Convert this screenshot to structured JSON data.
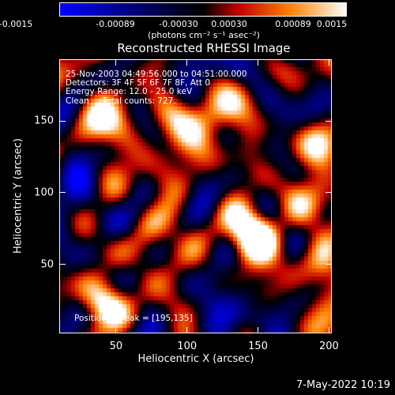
{
  "colorbar": {
    "tick_labels": [
      "-0.0015",
      "-0.00089",
      "-0.00030",
      "0.00030",
      "0.00089",
      "0.0015"
    ],
    "unit": "(photons cm⁻² s⁻¹ asec⁻²)",
    "colors": [
      "#0000ff",
      "#000000",
      "#c00000",
      "#ff8000",
      "#ffffff"
    ]
  },
  "chart_data": {
    "type": "heatmap",
    "title": "Reconstructed RHESSI Image",
    "xlabel": "Heliocentric X (arcsec)",
    "ylabel": "Heliocentric Y (arcsec)",
    "xlim": [
      10,
      202
    ],
    "ylim": [
      2,
      193
    ],
    "xticks": [
      "50",
      "100",
      "150",
      "200"
    ],
    "yticks": [
      "50",
      "100",
      "150"
    ],
    "value_range": [
      -0.0015,
      0.0015
    ],
    "peak": [
      195,
      135
    ]
  },
  "info": {
    "line1": "25-Nov-2003 04:49:56.000 to 04:51:00.000",
    "line2": "Detectors: 3F 4F 5F 6F 7F 8F, Att 0",
    "line3": "Energy Range: 12.0 - 25.0 keV",
    "line4": "Clean     Total counts: 727."
  },
  "peak_label": "Position of Peak = [195,135]",
  "footer": "7-May-2022 10:19"
}
